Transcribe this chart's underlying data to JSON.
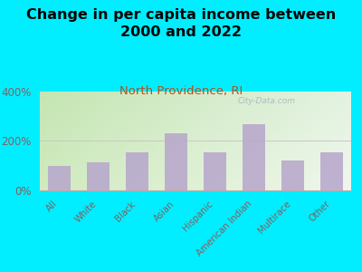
{
  "title": "Change in per capita income between\n2000 and 2022",
  "subtitle": "North Providence, RI",
  "categories": [
    "All",
    "White",
    "Black",
    "Asian",
    "Hispanic",
    "American Indian",
    "Multirace",
    "Other"
  ],
  "values": [
    100,
    115,
    155,
    230,
    155,
    265,
    120,
    155
  ],
  "bar_color": "#b8a8cc",
  "title_fontsize": 11.5,
  "subtitle_fontsize": 9.5,
  "subtitle_color": "#b05020",
  "background_outer": "#00eeff",
  "yticks": [
    0,
    200,
    400
  ],
  "ylim": [
    0,
    400
  ],
  "watermark": "City-Data.com",
  "tick_label_color": "#806060",
  "plot_bg_left": "#d0e8b0",
  "plot_bg_right": "#f0f5e8"
}
